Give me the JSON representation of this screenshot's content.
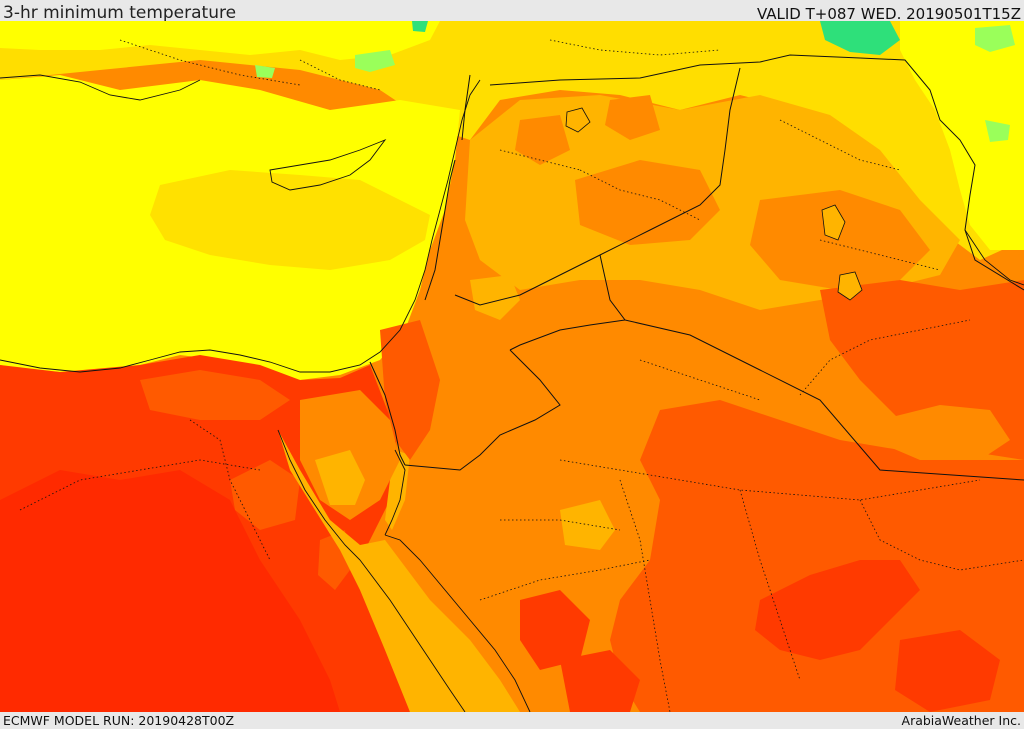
{
  "header": {
    "title": "3-hr minimum temperature",
    "valid_time": "VALID T+087 WED. 20190501T15Z"
  },
  "footer": {
    "model_run": "ECMWF MODEL RUN: 20190428T00Z",
    "provider": "ArabiaWeather Inc."
  },
  "palette": {
    "green": "#2ee07a",
    "light_green": "#9aff5a",
    "yellow_green": "#d8ff2a",
    "yellow": "#ffff00",
    "gold": "#ffde00",
    "light_orange": "#ffb400",
    "orange": "#ff8a00",
    "dark_orange": "#ff5a00",
    "red_orange": "#ff3a00",
    "red": "#ff2a00",
    "border_color": "#111111"
  }
}
